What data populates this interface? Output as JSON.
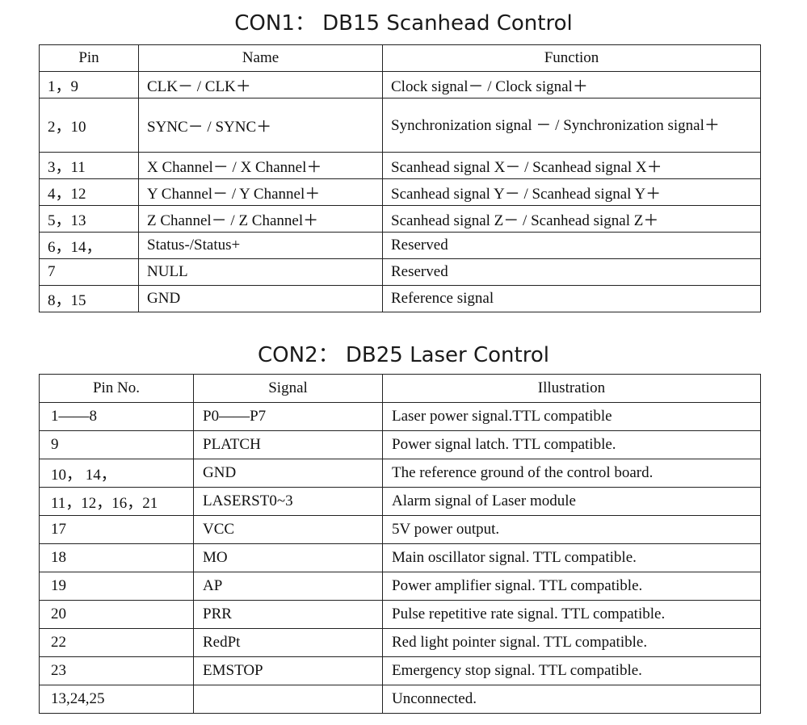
{
  "con1": {
    "title": "CON1： DB15 Scanhead Control",
    "headers": [
      "Pin",
      "Name",
      "Function"
    ],
    "rows": [
      {
        "pin": "1，9",
        "name": "CLK－ / CLK＋",
        "function": "Clock signal－ / Clock signal＋"
      },
      {
        "pin": "2，10",
        "name": "SYNC－ / SYNC＋",
        "function": "Synchronization signal － / Synchronization signal＋"
      },
      {
        "pin": "3，11",
        "name": "X Channel－ / X Channel＋",
        "function": "Scanhead signal X－ / Scanhead signal X＋"
      },
      {
        "pin": "4，12",
        "name": "Y Channel－ / Y Channel＋",
        "function": "Scanhead signal Y－ / Scanhead signal Y＋"
      },
      {
        "pin": "5，13",
        "name": "Z Channel－ / Z Channel＋",
        "function": "Scanhead signal Z－ / Scanhead signal Z＋"
      },
      {
        "pin": "6，14，",
        "name": "Status-/Status+",
        "function": "Reserved"
      },
      {
        "pin": "7",
        "name": "NULL",
        "function": "Reserved"
      },
      {
        "pin": "8，15",
        "name": "GND",
        "function": "Reference signal"
      }
    ]
  },
  "con2": {
    "title": "CON2： DB25 Laser Control",
    "headers": [
      "Pin No.",
      "Signal",
      "Illustration"
    ],
    "rows": [
      {
        "pin": "1——8",
        "signal": "P0——P7",
        "illustration": "Laser power signal.TTL compatible"
      },
      {
        "pin": "9",
        "signal": "PLATCH",
        "illustration": "Power signal latch. TTL compatible."
      },
      {
        "pin": "10， 14，",
        "signal": "GND",
        "illustration": "The reference ground of the control board."
      },
      {
        "pin": "11，12，16，21",
        "signal": "LASERST0~3",
        "illustration": "Alarm signal of Laser module"
      },
      {
        "pin": "17",
        "signal": "VCC",
        "illustration": "5V power output."
      },
      {
        "pin": "18",
        "signal": "MO",
        "illustration": "Main oscillator signal. TTL compatible."
      },
      {
        "pin": "19",
        "signal": "AP",
        "illustration": "Power amplifier signal. TTL compatible."
      },
      {
        "pin": "20",
        "signal": "PRR",
        "illustration": "Pulse repetitive rate signal. TTL compatible."
      },
      {
        "pin": "22",
        "signal": "RedPt",
        "illustration": "Red light pointer signal. TTL compatible."
      },
      {
        "pin": "23",
        "signal": "EMSTOP",
        "illustration": "Emergency stop signal. TTL compatible."
      },
      {
        "pin": "13,24,25",
        "signal": "",
        "illustration": "Unconnected."
      }
    ]
  }
}
